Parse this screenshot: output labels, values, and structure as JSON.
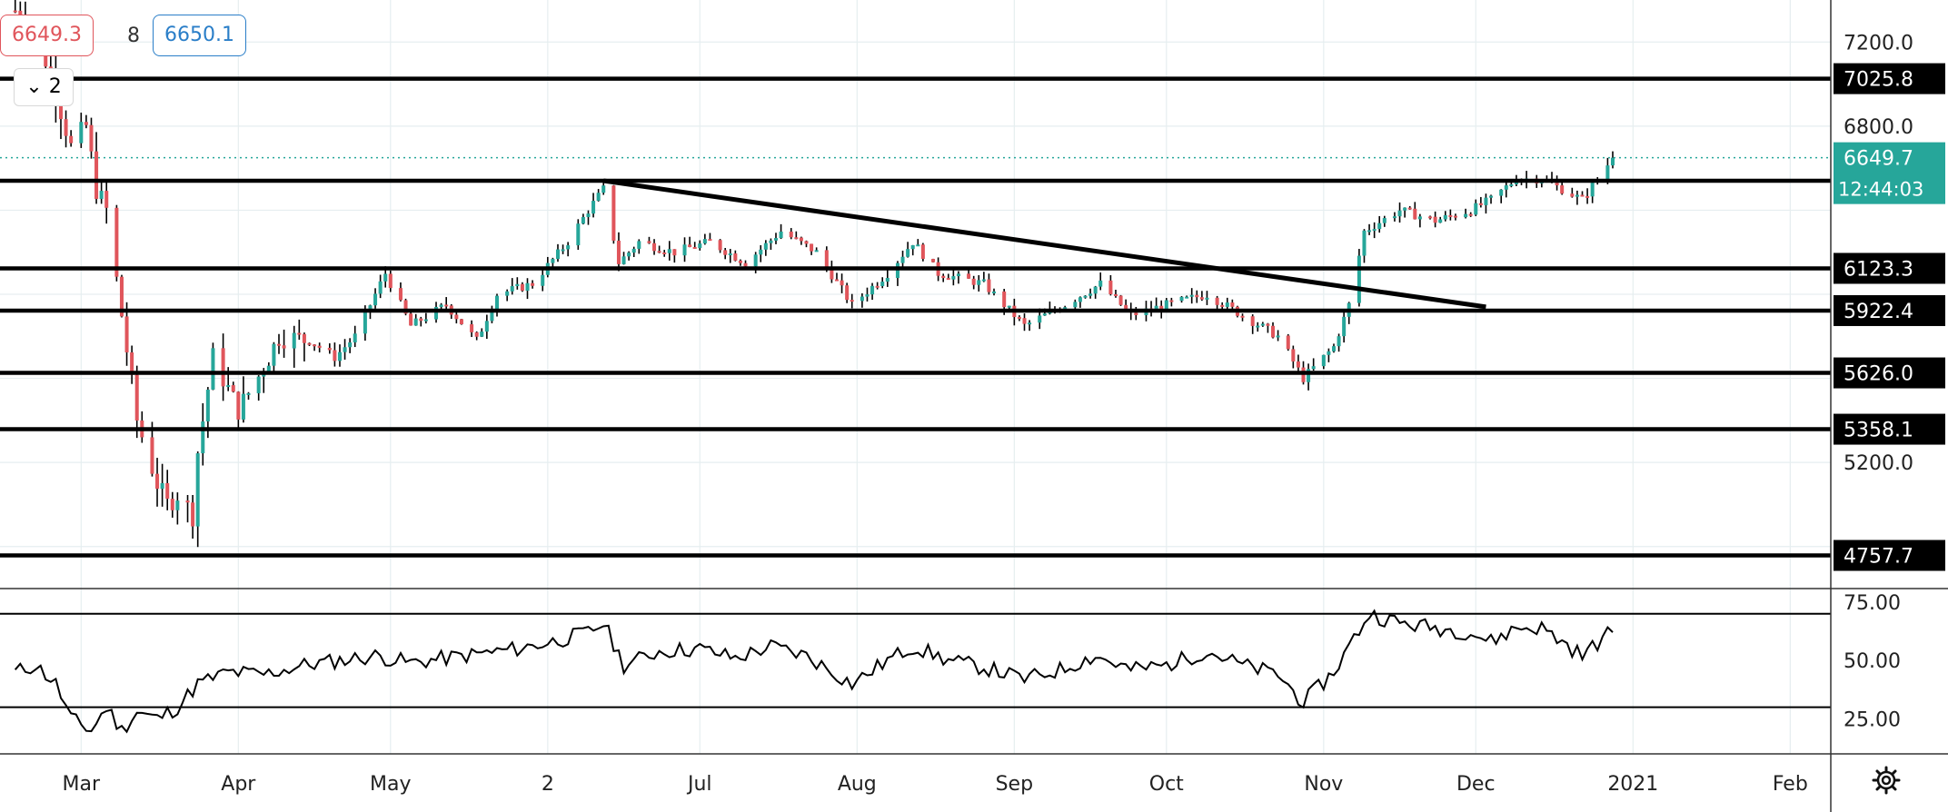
{
  "toolbar": {
    "bid": "6649.3",
    "spread": "8",
    "ask": "6650.1",
    "toggle_label": "2",
    "toggle_icon": "chevron-down-icon"
  },
  "colors": {
    "up": "#26a69a",
    "down": "#e0555b",
    "level_line": "#000000",
    "grid": "#e6eef0",
    "price_label_bg": "#26a69a"
  },
  "chart_data": [
    {
      "type": "candlestick",
      "instrument_axis": "price",
      "x_ticks": [
        "Mar",
        "Apr",
        "May",
        "2",
        "Jul",
        "Aug",
        "Sep",
        "Oct",
        "Nov",
        "Dec",
        "2021",
        "Feb"
      ],
      "y_ticks": [
        "7200.0",
        "6800.0",
        "5200.0"
      ],
      "ylim": [
        4600,
        7400
      ],
      "horizontal_levels": [
        7025.8,
        6123.3,
        5922.4,
        5626.0,
        5358.1,
        4757.7
      ],
      "level_labels": [
        "7025.8",
        "6123.3",
        "5922.4",
        "5626.0",
        "5358.1",
        "4757.7"
      ],
      "unlabeled_level": 6540,
      "trendline": {
        "start": [
          "Jun 12",
          6540
        ],
        "end": [
          "Dec 3",
          5940
        ]
      },
      "current_price": {
        "value": 6649.7,
        "label": "6649.7",
        "countdown": "12:44:03"
      },
      "price_path": [
        [
          "Feb 17",
          7350
        ],
        [
          "Feb 20",
          7300
        ],
        [
          "Feb 24",
          7050
        ],
        [
          "Feb 28",
          6700
        ],
        [
          "Mar 2",
          6800
        ],
        [
          "Mar 4",
          6500
        ],
        [
          "Mar 6",
          6400
        ],
        [
          "Mar 9",
          5900
        ],
        [
          "Mar 12",
          5400
        ],
        [
          "Mar 16",
          5100
        ],
        [
          "Mar 18",
          5000
        ],
        [
          "Mar 20",
          5050
        ],
        [
          "Mar 23",
          4950
        ],
        [
          "Mar 24",
          5250
        ],
        [
          "Mar 27",
          5700
        ],
        [
          "Apr 1",
          5450
        ],
        [
          "Apr 6",
          5650
        ],
        [
          "Apr 9",
          5800
        ],
        [
          "Apr 15",
          5780
        ],
        [
          "Apr 20",
          5700
        ],
        [
          "Apr 24",
          5800
        ],
        [
          "Apr 30",
          6100
        ],
        [
          "May 5",
          5850
        ],
        [
          "May 12",
          5950
        ],
        [
          "May 18",
          5780
        ],
        [
          "May 22",
          6000
        ],
        [
          "May 29",
          6050
        ],
        [
          "Jun 5",
          6250
        ],
        [
          "Jun 9",
          6400
        ],
        [
          "Jun 12",
          6500
        ],
        [
          "Jun 15",
          6150
        ],
        [
          "Jun 19",
          6250
        ],
        [
          "Jun 26",
          6200
        ],
        [
          "Jul 3",
          6250
        ],
        [
          "Jul 10",
          6150
        ],
        [
          "Jul 17",
          6300
        ],
        [
          "Jul 24",
          6200
        ],
        [
          "Jul 31",
          5950
        ],
        [
          "Aug 7",
          6100
        ],
        [
          "Aug 12",
          6250
        ],
        [
          "Aug 17",
          6100
        ],
        [
          "Aug 26",
          6050
        ],
        [
          "Sep 3",
          5850
        ],
        [
          "Sep 11",
          5950
        ],
        [
          "Sep 18",
          6050
        ],
        [
          "Sep 24",
          5900
        ],
        [
          "Oct 1",
          5950
        ],
        [
          "Oct 9",
          6000
        ],
        [
          "Oct 16",
          5900
        ],
        [
          "Oct 23",
          5800
        ],
        [
          "Oct 28",
          5600
        ],
        [
          "Nov 3",
          5750
        ],
        [
          "Nov 6",
          5950
        ],
        [
          "Nov 9",
          6300
        ],
        [
          "Nov 16",
          6400
        ],
        [
          "Nov 23",
          6350
        ],
        [
          "Nov 30",
          6400
        ],
        [
          "Dec 4",
          6450
        ],
        [
          "Dec 9",
          6550
        ],
        [
          "Dec 14",
          6550
        ],
        [
          "Dec 18",
          6500
        ],
        [
          "Dec 22",
          6450
        ],
        [
          "Dec 28",
          6649.7
        ]
      ]
    },
    {
      "type": "line",
      "indicator": "oscillator",
      "y_ticks": [
        "75.00",
        "50.00",
        "25.00"
      ],
      "ylim": [
        10,
        80
      ],
      "horizontal_levels": [
        70,
        30
      ],
      "values": [
        [
          "Feb 17",
          45
        ],
        [
          "Feb 21",
          48
        ],
        [
          "Feb 25",
          40
        ],
        [
          "Feb 28",
          25
        ],
        [
          "Mar 3",
          20
        ],
        [
          "Mar 6",
          30
        ],
        [
          "Mar 9",
          20
        ],
        [
          "Mar 12",
          28
        ],
        [
          "Mar 16",
          25
        ],
        [
          "Mar 20",
          30
        ],
        [
          "Mar 24",
          40
        ],
        [
          "Mar 30",
          45
        ],
        [
          "Apr 6",
          44
        ],
        [
          "Apr 14",
          48
        ],
        [
          "Apr 21",
          50
        ],
        [
          "Apr 28",
          52
        ],
        [
          "May 5",
          49
        ],
        [
          "May 12",
          51
        ],
        [
          "May 19",
          53
        ],
        [
          "May 26",
          55
        ],
        [
          "Jun 2",
          58
        ],
        [
          "Jun 9",
          62
        ],
        [
          "Jun 12",
          66
        ],
        [
          "Jun 16",
          48
        ],
        [
          "Jun 23",
          54
        ],
        [
          "Jul 1",
          55
        ],
        [
          "Jul 8",
          51
        ],
        [
          "Jul 15",
          56
        ],
        [
          "Jul 22",
          52
        ],
        [
          "Jul 31",
          40
        ],
        [
          "Aug 7",
          50
        ],
        [
          "Aug 12",
          56
        ],
        [
          "Aug 19",
          50
        ],
        [
          "Aug 26",
          47
        ],
        [
          "Sep 3",
          42
        ],
        [
          "Sep 10",
          46
        ],
        [
          "Sep 17",
          52
        ],
        [
          "Sep 24",
          46
        ],
        [
          "Oct 1",
          48
        ],
        [
          "Oct 9",
          54
        ],
        [
          "Oct 16",
          48
        ],
        [
          "Oct 23",
          44
        ],
        [
          "Oct 28",
          32
        ],
        [
          "Nov 3",
          45
        ],
        [
          "Nov 6",
          56
        ],
        [
          "Nov 10",
          70
        ],
        [
          "Nov 16",
          66
        ],
        [
          "Nov 23",
          64
        ],
        [
          "Nov 30",
          62
        ],
        [
          "Dec 4",
          58
        ],
        [
          "Dec 9",
          64
        ],
        [
          "Dec 14",
          64
        ],
        [
          "Dec 18",
          58
        ],
        [
          "Dec 22",
          52
        ],
        [
          "Dec 28",
          63
        ]
      ]
    }
  ],
  "settings_icon": "gear-icon"
}
